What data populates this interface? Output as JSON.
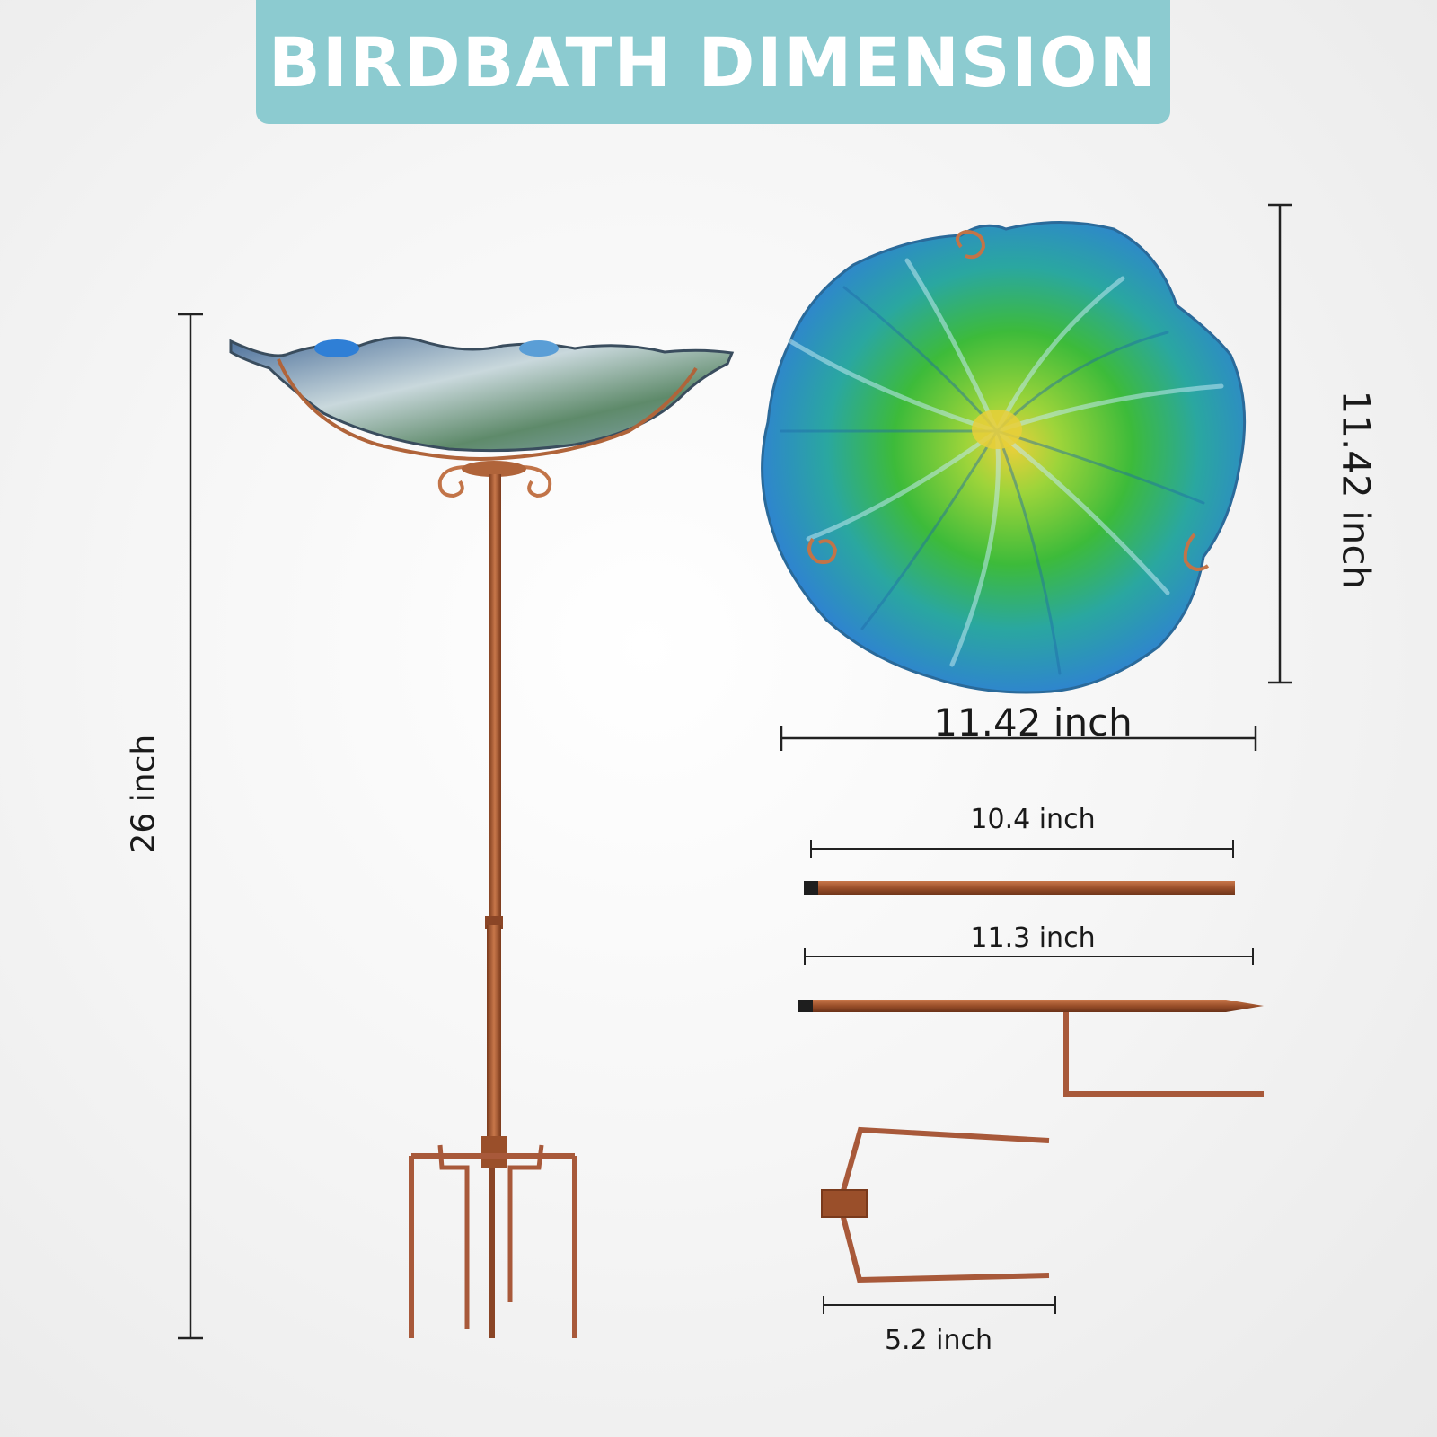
{
  "title": "BIRDBATH DIMENSION",
  "dimensions": {
    "total_height": "26 inch",
    "bowl_height": "11.42 inch",
    "bowl_width": "11.42 inch",
    "upper_pole": "10.4 inch",
    "lower_pole": "11.3 inch",
    "fork_width": "5.2 inch"
  },
  "colors": {
    "banner": "#8ccbd0",
    "copper": "#b0643a",
    "glass_blue": "#2f8fd6",
    "glass_green": "#3dbb3a",
    "glass_yellow": "#e8cf3a"
  }
}
